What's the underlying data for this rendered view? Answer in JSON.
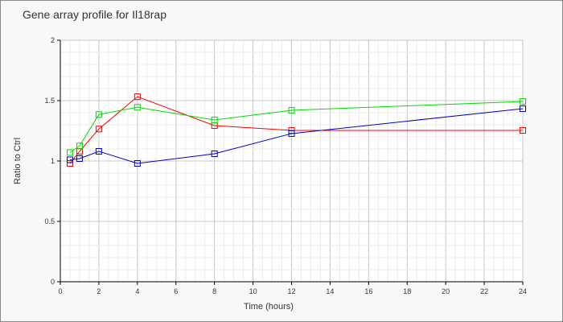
{
  "chart_data": {
    "type": "line",
    "title": "Gene array profile for Il18rap",
    "xlabel": "Time (hours)",
    "ylabel": "Ratio to Ctrl",
    "xlim": [
      0,
      24
    ],
    "ylim": [
      0,
      2
    ],
    "xticks": [
      "0",
      "2",
      "4",
      "6",
      "8",
      "10",
      "12",
      "14",
      "16",
      "18",
      "20",
      "22",
      "24"
    ],
    "yticks": [
      "0",
      "0.5",
      "1",
      "1.5",
      "2"
    ],
    "grid": true,
    "marker": "square",
    "x": [
      0.5,
      1,
      2,
      4,
      8,
      12,
      24
    ],
    "series": [
      {
        "color": "#ff0000",
        "values": [
          0.98,
          1.08,
          1.265,
          1.533,
          1.293,
          1.253,
          1.253
        ]
      },
      {
        "color": "#00dd00",
        "values": [
          1.07,
          1.125,
          1.385,
          1.445,
          1.34,
          1.42,
          1.493
        ]
      },
      {
        "color": "#0000cc",
        "values": [
          1.01,
          1.02,
          1.08,
          0.98,
          1.06,
          1.227,
          1.433
        ]
      }
    ]
  }
}
